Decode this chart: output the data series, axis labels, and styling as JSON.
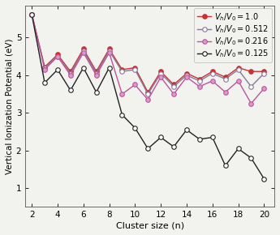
{
  "x": [
    2,
    3,
    4,
    5,
    6,
    7,
    8,
    9,
    10,
    11,
    12,
    13,
    14,
    15,
    16,
    17,
    18,
    19,
    20
  ],
  "vb_v0_1p0": [
    5.62,
    4.22,
    4.55,
    4.1,
    4.7,
    4.1,
    4.7,
    4.15,
    4.2,
    3.55,
    4.1,
    3.75,
    4.05,
    3.9,
    4.1,
    3.95,
    4.2,
    4.1,
    4.1
  ],
  "vb_v0_0p512": [
    5.62,
    4.2,
    4.5,
    4.05,
    4.65,
    4.05,
    4.65,
    4.1,
    4.15,
    3.5,
    4.05,
    3.7,
    4.0,
    3.85,
    4.05,
    3.9,
    4.15,
    3.7,
    4.05
  ],
  "vb_v0_0p216": [
    5.62,
    4.15,
    4.5,
    4.0,
    4.6,
    4.0,
    4.6,
    3.5,
    3.75,
    3.35,
    3.95,
    3.5,
    3.95,
    3.7,
    3.85,
    3.55,
    3.85,
    3.25,
    3.65
  ],
  "vb_v0_0p125": [
    5.62,
    3.8,
    4.15,
    3.6,
    4.2,
    3.55,
    4.2,
    2.95,
    2.6,
    2.05,
    2.35,
    2.1,
    2.55,
    2.3,
    2.35,
    1.6,
    2.05,
    1.8,
    1.25
  ],
  "line_colors": [
    "#c83232",
    "#887799",
    "#bb5599",
    "#222222"
  ],
  "markerfacecolors": [
    "#c83232",
    "#ffffff",
    "#dd99cc",
    "#ffffff"
  ],
  "markeredgecolors": [
    "#c83232",
    "#887799",
    "#bb5599",
    "#222222"
  ],
  "markersize": 4.0,
  "linewidths": [
    1.0,
    1.0,
    1.0,
    1.0
  ],
  "xlabel": "Cluster size (n)",
  "ylabel": "Vertical Ionization Potential (eV)",
  "xlim": [
    1.5,
    20.8
  ],
  "ylim": [
    0.5,
    5.85
  ],
  "xticks": [
    2,
    4,
    6,
    8,
    10,
    12,
    14,
    16,
    18,
    20
  ],
  "yticks": [
    1,
    2,
    3,
    4,
    5
  ],
  "bg_color": "#f2f2ee",
  "legend_labels": [
    "V_h/V_0=1.0",
    "V_h/V_0=0.512",
    "V_h/V_0=0.216",
    "V_h/V_0=0.125"
  ],
  "legend_fontsize": 7.0,
  "xlabel_fontsize": 8.0,
  "ylabel_fontsize": 7.5,
  "tick_labelsize": 7.5
}
